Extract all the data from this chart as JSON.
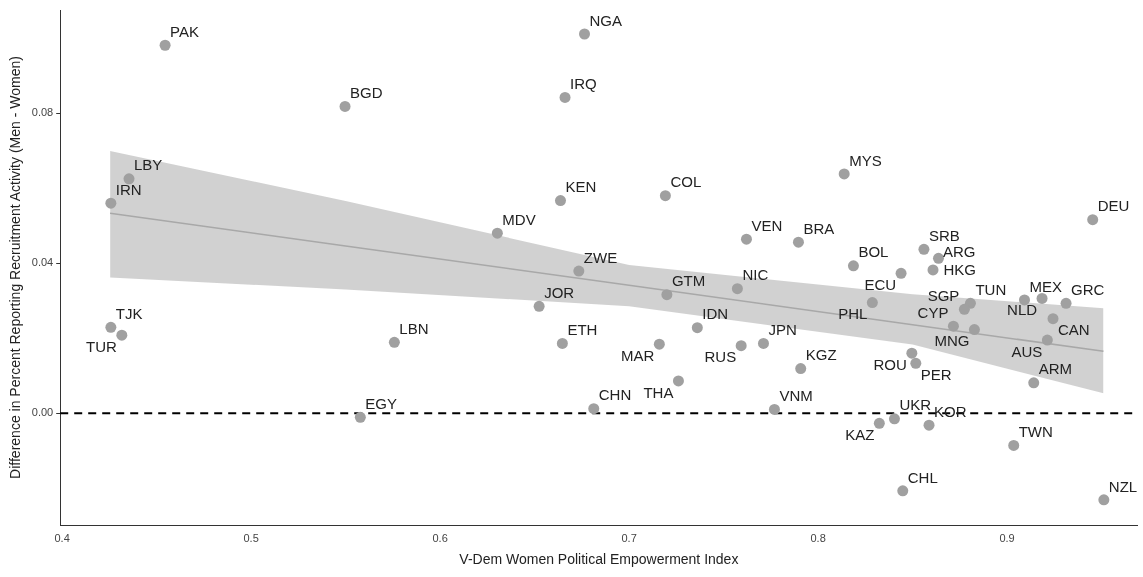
{
  "chart_data": {
    "type": "scatter",
    "xlabel": "V-Dem Women Political Empowerment Index",
    "ylabel": "Difference in Percent Reporting Recruitment Activity (Men - Women)",
    "xlim": [
      0.399,
      0.969
    ],
    "xticks": [
      0.4,
      0.5,
      0.6,
      0.7,
      0.8,
      0.9
    ],
    "ylim": [
      -0.0298,
      0.1075
    ],
    "yticks": [
      {
        "value": 0,
        "label": "0.00"
      },
      {
        "value": 0.04,
        "label": "0.04"
      },
      {
        "value": 0.08,
        "label": "0.08"
      }
    ],
    "grid": false,
    "legend": false,
    "marker": "circle",
    "ref_lines": [
      {
        "axis": "y",
        "value": 0,
        "line_style": "dashed",
        "color": "#000000"
      }
    ],
    "series": [
      {
        "type": "line",
        "color": "#a8a8a8",
        "marker": "none",
        "x": [
          0.4254,
          0.55,
          0.7,
          0.85,
          0.951
        ],
        "values": [
          0.0533,
          0.0446,
          0.0341,
          0.0236,
          0.0165
        ],
        "lower": [
          0.0362,
          0.033,
          0.0285,
          0.0183,
          0.0053
        ],
        "upper": [
          0.0699,
          0.0566,
          0.0395,
          0.0317,
          0.028
        ]
      },
      {
        "color": "#a0a0a0",
        "x": [
          0.4545,
          0.6764,
          0.5497,
          0.6661,
          0.4354,
          0.4258,
          0.7192,
          0.8138,
          0.6637,
          0.6303,
          0.9453,
          0.7621,
          0.7896,
          0.8187,
          0.856,
          0.8637,
          0.8608,
          0.8439,
          0.6734,
          0.72,
          0.7573,
          0.6524,
          0.8287,
          0.9092,
          0.9185,
          0.9312,
          0.8806,
          0.8774,
          0.9243,
          0.8827,
          0.8716,
          0.9213,
          0.8496,
          0.8517,
          0.9141,
          0.4258,
          0.4316,
          0.5758,
          0.6647,
          0.7361,
          0.716,
          0.7593,
          0.7711,
          0.7908,
          0.7261,
          0.6813,
          0.7769,
          0.5578,
          0.8324,
          0.8404,
          0.8587,
          0.9035,
          0.8448,
          0.9512
        ],
        "values": [
          0.0981,
          0.1011,
          0.0818,
          0.0842,
          0.0625,
          0.056,
          0.058,
          0.0638,
          0.0567,
          0.048,
          0.0516,
          0.0464,
          0.0456,
          0.0393,
          0.0437,
          0.0413,
          0.0382,
          0.0373,
          0.0379,
          0.0316,
          0.0332,
          0.0285,
          0.0295,
          0.0302,
          0.0306,
          0.0293,
          0.0293,
          0.0277,
          0.0252,
          0.0223,
          0.0232,
          0.0195,
          0.016,
          0.0133,
          0.0081,
          0.0229,
          0.0208,
          0.0189,
          0.0186,
          0.0228,
          0.0184,
          0.018,
          0.0186,
          0.0119,
          0.0086,
          0.0012,
          0.001,
          -0.0011,
          -0.0027,
          -0.0015,
          -0.0032,
          -0.0086,
          -0.0207,
          -0.0231
        ],
        "value_labels": [
          "PAK",
          "NGA",
          "BGD",
          "IRQ",
          "LBY",
          "IRN",
          "COL",
          "MYS",
          "KEN",
          "MDV",
          "DEU",
          "VEN",
          "BRA",
          "BOL",
          "SRB",
          "HKG",
          "ARG",
          "ECU",
          "ZWE",
          "GTM",
          "NIC",
          "JOR",
          "PHL",
          "MEX",
          "NLD",
          "GRC",
          "TUN",
          "SGP",
          "CAN",
          "MNG",
          "CYP",
          "AUS",
          "ROU",
          "PER",
          "ARM",
          "TJK",
          "TUR",
          "LBN",
          "ETH",
          "IDN",
          "MAR",
          "RUS",
          "JPN",
          "KGZ",
          "THA",
          "CHN",
          "VNM",
          "EGY",
          "KAZ",
          "UKR",
          "KOR",
          "TWN",
          "CHL",
          "NZL"
        ]
      }
    ]
  }
}
